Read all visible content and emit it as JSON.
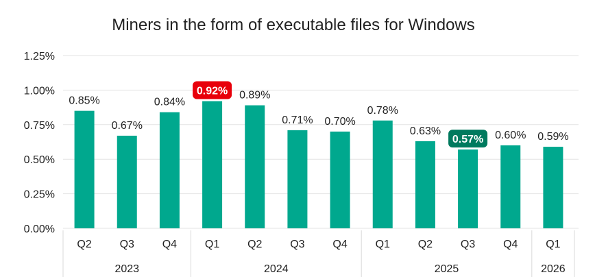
{
  "chart_data": {
    "type": "bar",
    "title": "Miners in the form of executable files for Windows",
    "xlabel": "",
    "ylabel": "",
    "ylim": [
      0,
      1.25
    ],
    "yticks": [
      "0.00%",
      "0.25%",
      "0.50%",
      "0.75%",
      "1.00%",
      "1.25%"
    ],
    "grid": true,
    "colors": {
      "bar": "#00A88E",
      "highlight_max": "#E8000B",
      "highlight_min": "#007A5E",
      "axis_text": "#222222"
    },
    "categories": [
      "Q2",
      "Q3",
      "Q4",
      "Q1",
      "Q2",
      "Q3",
      "Q4",
      "Q1",
      "Q2",
      "Q3",
      "Q4",
      "Q1"
    ],
    "values": [
      0.85,
      0.67,
      0.84,
      0.92,
      0.89,
      0.71,
      0.7,
      0.78,
      0.63,
      0.57,
      0.6,
      0.59
    ],
    "data_labels": [
      "0.85%",
      "0.67%",
      "0.84%",
      "0.92%",
      "0.89%",
      "0.71%",
      "0.70%",
      "0.78%",
      "0.63%",
      "0.57%",
      "0.60%",
      "0.59%"
    ],
    "highlight": {
      "max_index": 3,
      "min_index": 9
    },
    "groups": [
      {
        "label": "2023",
        "count": 3
      },
      {
        "label": "2024",
        "count": 4
      },
      {
        "label": "2025",
        "count": 4
      },
      {
        "label": "2026",
        "count": 1
      }
    ]
  }
}
